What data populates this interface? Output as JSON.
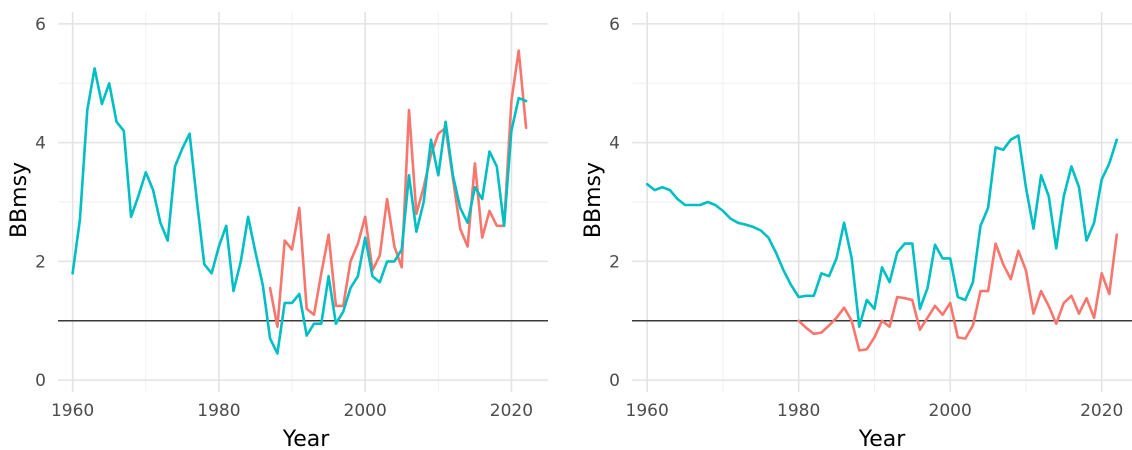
{
  "chart_data": [
    {
      "type": "line",
      "xlabel": "Year",
      "ylabel": "BBmsy",
      "xlim": [
        1958,
        2025
      ],
      "ylim": [
        -0.2,
        6.2
      ],
      "xticks": [
        1960,
        1980,
        2000,
        2020
      ],
      "yticks": [
        0,
        2,
        4,
        6
      ],
      "reference_line": 1,
      "grid": true,
      "legend": "none",
      "series": [
        {
          "color": "#F8766D",
          "x": [
            1987,
            1988,
            1989,
            1990,
            1991,
            1992,
            1993,
            1994,
            1995,
            1996,
            1997,
            1998,
            1999,
            2000,
            2001,
            2002,
            2003,
            2004,
            2005,
            2006,
            2007,
            2008,
            2009,
            2010,
            2011,
            2012,
            2013,
            2014,
            2015,
            2016,
            2017,
            2018,
            2019,
            2020,
            2021,
            2022
          ],
          "y": [
            1.55,
            0.9,
            2.35,
            2.2,
            2.9,
            1.2,
            1.1,
            1.8,
            2.45,
            1.25,
            1.25,
            2.0,
            2.3,
            2.75,
            1.85,
            2.1,
            3.05,
            2.25,
            1.9,
            4.55,
            2.8,
            3.25,
            3.8,
            4.15,
            4.25,
            3.4,
            2.55,
            2.25,
            3.65,
            2.4,
            2.85,
            2.6,
            2.6,
            4.7,
            5.55,
            4.25
          ]
        },
        {
          "color": "#00BFC4",
          "x": [
            1960,
            1961,
            1962,
            1963,
            1964,
            1965,
            1966,
            1967,
            1968,
            1969,
            1970,
            1971,
            1972,
            1973,
            1974,
            1975,
            1976,
            1977,
            1978,
            1979,
            1980,
            1981,
            1982,
            1983,
            1984,
            1985,
            1986,
            1987,
            1988,
            1989,
            1990,
            1991,
            1992,
            1993,
            1994,
            1995,
            1996,
            1997,
            1998,
            1999,
            2000,
            2001,
            2002,
            2003,
            2004,
            2005,
            2006,
            2007,
            2008,
            2009,
            2010,
            2011,
            2012,
            2013,
            2014,
            2015,
            2016,
            2017,
            2018,
            2019,
            2020,
            2021,
            2022
          ],
          "y": [
            1.8,
            2.7,
            4.55,
            5.25,
            4.65,
            5.0,
            4.35,
            4.2,
            2.75,
            3.1,
            3.5,
            3.2,
            2.65,
            2.35,
            3.6,
            3.9,
            4.15,
            3.0,
            1.95,
            1.8,
            2.25,
            2.6,
            1.5,
            2.0,
            2.75,
            2.15,
            1.6,
            0.7,
            0.45,
            1.3,
            1.3,
            1.45,
            0.75,
            0.95,
            0.95,
            1.75,
            0.95,
            1.15,
            1.55,
            1.75,
            2.4,
            1.75,
            1.65,
            2.0,
            2.0,
            2.2,
            3.45,
            2.5,
            3.0,
            4.05,
            3.45,
            4.35,
            3.45,
            2.9,
            2.65,
            3.25,
            3.05,
            3.85,
            3.6,
            2.6,
            4.2,
            4.75,
            4.7
          ]
        }
      ]
    },
    {
      "type": "line",
      "xlabel": "Year",
      "ylabel": "BBmsy",
      "xlim": [
        1958,
        2024
      ],
      "ylim": [
        -0.2,
        6.2
      ],
      "xticks": [
        1960,
        1980,
        2000,
        2020
      ],
      "yticks": [
        0,
        2,
        4,
        6
      ],
      "reference_line": 1,
      "grid": true,
      "legend": "none",
      "series": [
        {
          "color": "#F8766D",
          "x": [
            1980,
            1981,
            1982,
            1983,
            1984,
            1985,
            1986,
            1987,
            1988,
            1989,
            1990,
            1991,
            1992,
            1993,
            1994,
            1995,
            1996,
            1997,
            1998,
            1999,
            2000,
            2001,
            2002,
            2003,
            2004,
            2005,
            2006,
            2007,
            2008,
            2009,
            2010,
            2011,
            2012,
            2013,
            2014,
            2015,
            2016,
            2017,
            2018,
            2019,
            2020,
            2021,
            2022
          ],
          "y": [
            1.0,
            0.88,
            0.78,
            0.8,
            0.92,
            1.05,
            1.22,
            1.0,
            0.5,
            0.52,
            0.72,
            1.0,
            0.9,
            1.4,
            1.38,
            1.35,
            0.85,
            1.05,
            1.25,
            1.1,
            1.3,
            0.72,
            0.7,
            0.92,
            1.5,
            1.5,
            2.3,
            1.95,
            1.7,
            2.18,
            1.85,
            1.12,
            1.5,
            1.25,
            0.95,
            1.3,
            1.42,
            1.12,
            1.38,
            1.05,
            1.8,
            1.45,
            2.45
          ]
        },
        {
          "color": "#00BFC4",
          "x": [
            1960,
            1961,
            1962,
            1963,
            1964,
            1965,
            1966,
            1967,
            1968,
            1969,
            1970,
            1971,
            1972,
            1973,
            1974,
            1975,
            1976,
            1977,
            1978,
            1979,
            1980,
            1981,
            1982,
            1983,
            1984,
            1985,
            1986,
            1987,
            1988,
            1989,
            1990,
            1991,
            1992,
            1993,
            1994,
            1995,
            1996,
            1997,
            1998,
            1999,
            2000,
            2001,
            2002,
            2003,
            2004,
            2005,
            2006,
            2007,
            2008,
            2009,
            2010,
            2011,
            2012,
            2013,
            2014,
            2015,
            2016,
            2017,
            2018,
            2019,
            2020,
            2021,
            2022
          ],
          "y": [
            3.3,
            3.2,
            3.25,
            3.2,
            3.05,
            2.95,
            2.95,
            2.95,
            3.0,
            2.95,
            2.85,
            2.72,
            2.65,
            2.62,
            2.58,
            2.52,
            2.4,
            2.15,
            1.85,
            1.6,
            1.4,
            1.42,
            1.42,
            1.8,
            1.75,
            2.05,
            2.65,
            2.05,
            0.9,
            1.35,
            1.2,
            1.9,
            1.65,
            2.15,
            2.3,
            2.3,
            1.2,
            1.55,
            2.28,
            2.05,
            2.05,
            1.4,
            1.35,
            1.65,
            2.6,
            2.9,
            3.92,
            3.88,
            4.05,
            4.12,
            3.25,
            2.55,
            3.45,
            3.1,
            2.22,
            3.1,
            3.6,
            3.25,
            2.35,
            2.65,
            3.38,
            3.65,
            4.05
          ]
        }
      ]
    }
  ]
}
